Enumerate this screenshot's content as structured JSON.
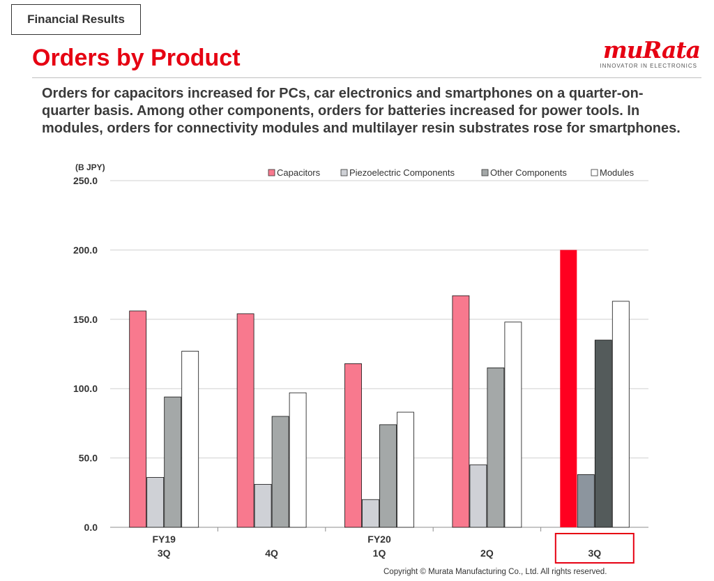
{
  "header": {
    "section_tag": "Financial Results",
    "title": "Orders by Product",
    "logo": {
      "wordmark": "muRata",
      "tagline": "INNOVATOR IN ELECTRONICS"
    }
  },
  "summary": "Orders for capacitors increased for PCs, car electronics and smartphones on a quarter-on-quarter basis. Among other components, orders for batteries increased for power tools. In modules, orders for connectivity modules and multilayer resin substrates rose for smartphones.",
  "footer": {
    "copyright": "Copyright © Murata Manufacturing Co., Ltd. All rights reserved."
  },
  "chart_data": {
    "type": "bar",
    "ylabel": "(B JPY)",
    "ylim": [
      0,
      250
    ],
    "yticks": [
      0,
      50,
      100,
      150,
      200,
      250
    ],
    "ytick_labels": [
      "0.0",
      "50.0",
      "100.0",
      "150.0",
      "200.0",
      "250.0"
    ],
    "grid": true,
    "legend_position": "top-right",
    "categories": [
      {
        "line1": "FY19",
        "line2": "3Q"
      },
      {
        "line1": "",
        "line2": "4Q"
      },
      {
        "line1": "FY20",
        "line2": "1Q"
      },
      {
        "line1": "",
        "line2": "2Q"
      },
      {
        "line1": "",
        "line2": "3Q"
      }
    ],
    "highlight_category": 4,
    "series": [
      {
        "name": "Capacitors",
        "color": "#f8798e",
        "highlight_color": "#ff0020",
        "values": [
          156,
          154,
          118,
          167,
          200
        ]
      },
      {
        "name": "Piezoelectric Components",
        "color": "#cfd1d6",
        "highlight_color": "#8c959e",
        "values": [
          36,
          31,
          20,
          45,
          38
        ]
      },
      {
        "name": "Other Components",
        "color": "#a4a8a8",
        "highlight_color": "#545b5b",
        "values": [
          94,
          80,
          74,
          115,
          135
        ]
      },
      {
        "name": "Modules",
        "color": "#ffffff",
        "highlight_color": "#ffffff",
        "values": [
          127,
          97,
          83,
          148,
          163
        ]
      }
    ]
  }
}
